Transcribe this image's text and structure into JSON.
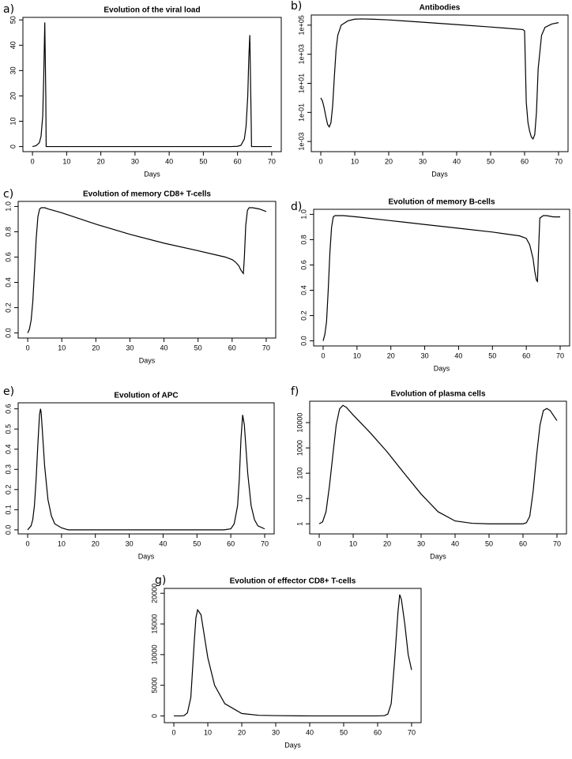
{
  "chart_data": [
    {
      "type": "line",
      "panel_label": "a)",
      "title": "Evolution of the viral load",
      "xlabel": "Days",
      "color": "#000000",
      "log_y": false,
      "x": [
        0,
        1,
        2,
        2.5,
        3,
        3.3,
        3.6,
        3.9,
        4.0,
        10,
        20,
        30,
        40,
        50,
        58,
        60,
        61,
        62,
        62.5,
        63,
        63.3,
        63.6,
        64,
        64.1,
        70
      ],
      "values": [
        0,
        0.3,
        1.5,
        4,
        12,
        28,
        49,
        20,
        0,
        0,
        0,
        0,
        0,
        0,
        0,
        0.1,
        0.5,
        3,
        8,
        20,
        35,
        44,
        10,
        0,
        0
      ],
      "xlim": [
        -2.8,
        72.8
      ],
      "ylim": [
        -2,
        51
      ],
      "xticks": [
        0,
        10,
        20,
        30,
        40,
        50,
        60,
        70
      ],
      "yticks": [
        0,
        10,
        20,
        30,
        40,
        50
      ]
    },
    {
      "type": "line",
      "panel_label": "b)",
      "title": "Antibodies",
      "xlabel": "Days",
      "color": "#000000",
      "log_y": true,
      "x": [
        0,
        0.5,
        1,
        1.5,
        2,
        2.5,
        3,
        3.5,
        4,
        4.5,
        5,
        6,
        8,
        10,
        12,
        15,
        20,
        30,
        40,
        50,
        59.5,
        60,
        60.5,
        61,
        61.5,
        62,
        62.5,
        63,
        63.5,
        64,
        65,
        66,
        68,
        70
      ],
      "values": [
        1,
        0.6,
        0.2,
        0.05,
        0.015,
        0.01,
        0.02,
        0.3,
        30,
        2000,
        20000,
        100000,
        200000,
        260000,
        270000,
        260000,
        230000,
        160000,
        110000,
        75000,
        50000,
        40000,
        0.5,
        0.02,
        0.005,
        0.002,
        0.0015,
        0.003,
        0.1,
        100,
        20000,
        70000,
        120000,
        150000
      ],
      "xlim": [
        -2.8,
        72.8
      ],
      "ylim": [
        0.0002,
        500000
      ],
      "xticks": [
        0,
        10,
        20,
        30,
        40,
        50,
        60,
        70
      ],
      "yticks": [
        {
          "value": 0.001,
          "label": "1e-03"
        },
        {
          "value": 0.1,
          "label": "1e-01"
        },
        {
          "value": 10,
          "label": "1e+01"
        },
        {
          "value": 1000,
          "label": "1e+03"
        },
        {
          "value": 100000,
          "label": "1e+05"
        }
      ]
    },
    {
      "type": "line",
      "panel_label": "c)",
      "title": "Evolution of memory CD8+ T-cells",
      "xlabel": "Days",
      "color": "#000000",
      "log_y": false,
      "x": [
        0,
        0.5,
        1,
        1.5,
        2,
        2.5,
        3,
        3.5,
        4,
        5,
        6,
        10,
        20,
        30,
        40,
        50,
        58,
        60,
        61,
        62,
        62.5,
        63,
        63.3,
        63.6,
        64,
        64.5,
        65,
        66,
        68,
        70
      ],
      "values": [
        0,
        0.03,
        0.1,
        0.25,
        0.5,
        0.75,
        0.92,
        0.98,
        0.99,
        0.99,
        0.98,
        0.95,
        0.86,
        0.78,
        0.71,
        0.65,
        0.6,
        0.58,
        0.56,
        0.53,
        0.5,
        0.48,
        0.47,
        0.6,
        0.85,
        0.97,
        0.99,
        0.99,
        0.98,
        0.96
      ],
      "xlim": [
        -2.8,
        72.8
      ],
      "ylim": [
        -0.04,
        1.04
      ],
      "xticks": [
        0,
        10,
        20,
        30,
        40,
        50,
        60,
        70
      ],
      "yticks": [
        {
          "value": 0,
          "label": "0.0"
        },
        0.2,
        0.4,
        0.6,
        0.8,
        {
          "value": 1,
          "label": "1.0"
        }
      ]
    },
    {
      "type": "line",
      "panel_label": "d)",
      "title": "Evolution of memory B-cells",
      "xlabel": "Days",
      "color": "#000000",
      "log_y": false,
      "x": [
        0,
        0.5,
        1,
        1.5,
        2,
        2.5,
        3,
        3.5,
        4,
        6,
        10,
        20,
        30,
        40,
        50,
        58,
        60,
        61,
        62,
        62.5,
        63,
        63.3,
        63.6,
        64,
        65,
        66,
        68,
        70
      ],
      "values": [
        0,
        0.05,
        0.15,
        0.4,
        0.7,
        0.9,
        0.98,
        0.99,
        0.99,
        0.99,
        0.98,
        0.95,
        0.92,
        0.89,
        0.86,
        0.83,
        0.81,
        0.76,
        0.65,
        0.55,
        0.48,
        0.47,
        0.7,
        0.97,
        0.99,
        0.99,
        0.98,
        0.98
      ],
      "xlim": [
        -2.8,
        72.8
      ],
      "ylim": [
        -0.04,
        1.04
      ],
      "xticks": [
        0,
        10,
        20,
        30,
        40,
        50,
        60,
        70
      ],
      "yticks": [
        {
          "value": 0,
          "label": "0.0"
        },
        0.2,
        0.4,
        0.6,
        0.8,
        {
          "value": 1,
          "label": "1.0"
        }
      ]
    },
    {
      "type": "line",
      "panel_label": "e)",
      "title": "Evolution of APC",
      "xlabel": "Days",
      "color": "#000000",
      "log_y": false,
      "x": [
        0,
        1,
        1.5,
        2,
        2.5,
        3,
        3.5,
        3.8,
        4,
        4.5,
        5,
        6,
        7,
        8,
        10,
        12,
        20,
        30,
        40,
        50,
        58,
        60,
        61,
        62,
        62.5,
        63,
        63.5,
        64,
        64.5,
        65,
        66,
        67,
        68,
        70
      ],
      "values": [
        0,
        0.02,
        0.05,
        0.12,
        0.25,
        0.42,
        0.57,
        0.6,
        0.58,
        0.45,
        0.32,
        0.15,
        0.07,
        0.03,
        0.01,
        0,
        0,
        0,
        0,
        0,
        0,
        0.005,
        0.03,
        0.12,
        0.25,
        0.45,
        0.57,
        0.52,
        0.4,
        0.28,
        0.12,
        0.05,
        0.02,
        0.005
      ],
      "xlim": [
        -2.8,
        72.8
      ],
      "ylim": [
        -0.02,
        0.63
      ],
      "xticks": [
        0,
        10,
        20,
        30,
        40,
        50,
        60,
        70
      ],
      "yticks": [
        {
          "value": 0,
          "label": "0.0"
        },
        0.1,
        0.2,
        0.3,
        0.4,
        0.5,
        0.6
      ]
    },
    {
      "type": "line",
      "panel_label": "f)",
      "title": "Evolution of plasma cells",
      "xlabel": "Days",
      "color": "#000000",
      "log_y": true,
      "x": [
        0,
        1,
        2,
        3,
        4,
        5,
        6,
        7,
        8,
        10,
        15,
        20,
        25,
        30,
        35,
        40,
        45,
        50,
        55,
        60,
        61,
        62,
        63,
        64,
        65,
        66,
        67,
        68,
        70
      ],
      "values": [
        1,
        1.2,
        3,
        30,
        500,
        8000,
        35000,
        48000,
        40000,
        20000,
        4000,
        700,
        100,
        15,
        3,
        1.3,
        1.05,
        1,
        1,
        1,
        1.1,
        2,
        20,
        500,
        8000,
        30000,
        36000,
        30000,
        12000
      ],
      "xlim": [
        -2.8,
        72.8
      ],
      "ylim": [
        0.4,
        70000
      ],
      "xticks": [
        0,
        10,
        20,
        30,
        40,
        50,
        60,
        70
      ],
      "yticks": [
        1,
        10,
        100,
        1000,
        10000
      ]
    },
    {
      "type": "line",
      "panel_label": "g)",
      "title": "Evolution of effector CD8+ T-cells",
      "xlabel": "Days",
      "color": "#000000",
      "log_y": false,
      "x": [
        0,
        2,
        3,
        4,
        5,
        6,
        6.5,
        7,
        8,
        9,
        10,
        12,
        15,
        20,
        25,
        30,
        40,
        50,
        60,
        62,
        63,
        64,
        65,
        66,
        66.5,
        67,
        68,
        69,
        70
      ],
      "values": [
        0,
        0,
        50,
        500,
        3000,
        12000,
        16000,
        17300,
        16500,
        13000,
        9500,
        5000,
        2000,
        400,
        100,
        50,
        0,
        0,
        0,
        50,
        300,
        2000,
        9000,
        17000,
        19800,
        19000,
        15000,
        10000,
        7500
      ],
      "xlim": [
        -2.8,
        72.8
      ],
      "ylim": [
        -1100,
        20800
      ],
      "xticks": [
        0,
        10,
        20,
        30,
        40,
        50,
        60,
        70
      ],
      "yticks": [
        0,
        5000,
        10000,
        15000,
        20000
      ]
    }
  ]
}
